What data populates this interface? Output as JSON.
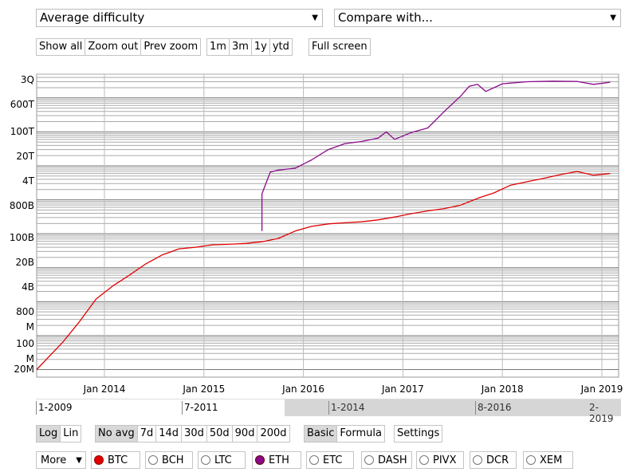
{
  "selectors": {
    "metric": "Average difficulty",
    "compare": "Compare with..."
  },
  "zoom_buttons": [
    "Show all",
    "Zoom out",
    "Prev zoom"
  ],
  "range_buttons": [
    "1m",
    "3m",
    "1y",
    "ytd"
  ],
  "fullscreen_label": "Full screen",
  "scale_buttons": [
    {
      "label": "Log",
      "active": true
    },
    {
      "label": "Lin",
      "active": false
    }
  ],
  "avg_buttons": [
    {
      "label": "No avg",
      "active": true
    },
    {
      "label": "7d",
      "active": false
    },
    {
      "label": "14d",
      "active": false
    },
    {
      "label": "30d",
      "active": false
    },
    {
      "label": "50d",
      "active": false
    },
    {
      "label": "90d",
      "active": false
    },
    {
      "label": "200d",
      "active": false
    }
  ],
  "mode_buttons": [
    {
      "label": "Basic",
      "active": true
    },
    {
      "label": "Formula",
      "active": false
    }
  ],
  "settings_label": "Settings",
  "more_label": "More",
  "coins": [
    {
      "label": "BTC",
      "selected": true,
      "color": "#e00000"
    },
    {
      "label": "BCH",
      "selected": false
    },
    {
      "label": "LTC",
      "selected": false
    },
    {
      "label": "ETH",
      "selected": true,
      "color": "#8a0a8a"
    },
    {
      "label": "ETC",
      "selected": false
    },
    {
      "label": "DASH",
      "selected": false
    },
    {
      "label": "PIVX",
      "selected": false
    },
    {
      "label": "DCR",
      "selected": false
    },
    {
      "label": "XEM",
      "selected": false
    }
  ],
  "range_slider": {
    "full_start": "1-2009",
    "full_mid": "7-2011",
    "selected_labels": [
      "1-2014",
      "8-2016",
      "2-2019"
    ]
  },
  "chart_data": {
    "type": "line",
    "y_scale": "log",
    "y_tick_labels": [
      "3Q",
      "600T",
      "100T",
      "20T",
      "4T",
      "800B",
      "100B",
      "20B",
      "4B",
      "800",
      "M",
      "100",
      "M",
      "20M"
    ],
    "x_tick_labels": [
      "Jan 2014",
      "Jan 2015",
      "Jan 2016",
      "Jan 2017",
      "Jan 2018",
      "Jan 2019"
    ],
    "grid": true,
    "series": [
      {
        "name": "BTC",
        "color": "#e00000",
        "x": [
          "2013-04",
          "2013-06",
          "2013-08",
          "2013-10",
          "2013-12",
          "2014-02",
          "2014-04",
          "2014-06",
          "2014-08",
          "2014-10",
          "2014-12",
          "2015-02",
          "2015-04",
          "2015-06",
          "2015-08",
          "2015-10",
          "2015-12",
          "2016-02",
          "2016-04",
          "2016-06",
          "2016-08",
          "2016-10",
          "2016-12",
          "2017-02",
          "2017-04",
          "2017-06",
          "2017-08",
          "2017-10",
          "2017-12",
          "2018-02",
          "2018-04",
          "2018-06",
          "2018-08",
          "2018-10",
          "2018-12",
          "2019-02"
        ],
        "values": [
          10000000.0,
          20000000.0,
          65000000.0,
          260000000.0,
          1200000000.0,
          2900000000.0,
          6000000000.0,
          13000000000.0,
          24000000000.0,
          36000000000.0,
          40000000000.0,
          47000000000.0,
          49000000000.0,
          52000000000.0,
          58000000000.0,
          73000000000.0,
          120000000000.0,
          165000000000.0,
          195000000000.0,
          210000000000.0,
          225000000000.0,
          255000000000.0,
          310000000000.0,
          390000000000.0,
          470000000000.0,
          550000000000.0,
          700000000000.0,
          1100000000000.0,
          1600000000000.0,
          2700000000000.0,
          3400000000000.0,
          4300000000000.0,
          5500000000000.0,
          6800000000000.0,
          5300000000000.0,
          5900000000000.0
        ]
      },
      {
        "name": "ETH",
        "color": "#8a0a8a",
        "x": [
          "2015-08",
          "2015-08",
          "2015-09",
          "2015-10",
          "2015-12",
          "2016-02",
          "2016-04",
          "2016-06",
          "2016-08",
          "2016-10",
          "2016-11",
          "2016-12",
          "2017-02",
          "2017-04",
          "2017-06",
          "2017-08",
          "2017-09",
          "2017-10",
          "2017-11",
          "2018-01",
          "2018-04",
          "2018-07",
          "2018-10",
          "2018-12",
          "2019-02"
        ],
        "values": [
          120000000000.0,
          1500000000000.0,
          6500000000000.0,
          7500000000000.0,
          8500000000000.0,
          15000000000000.0,
          30000000000000.0,
          45000000000000.0,
          52000000000000.0,
          65000000000000.0,
          100000000000000.0,
          60000000000000.0,
          95000000000000.0,
          130000000000000.0,
          400000000000000.0,
          1150000000000000.0,
          2200000000000000.0,
          2500000000000000.0,
          1550000000000000.0,
          2600000000000000.0,
          3000000000000000.0,
          3100000000000000.0,
          3050000000000000.0,
          2500000000000000.0,
          2900000000000000.0
        ]
      }
    ]
  }
}
